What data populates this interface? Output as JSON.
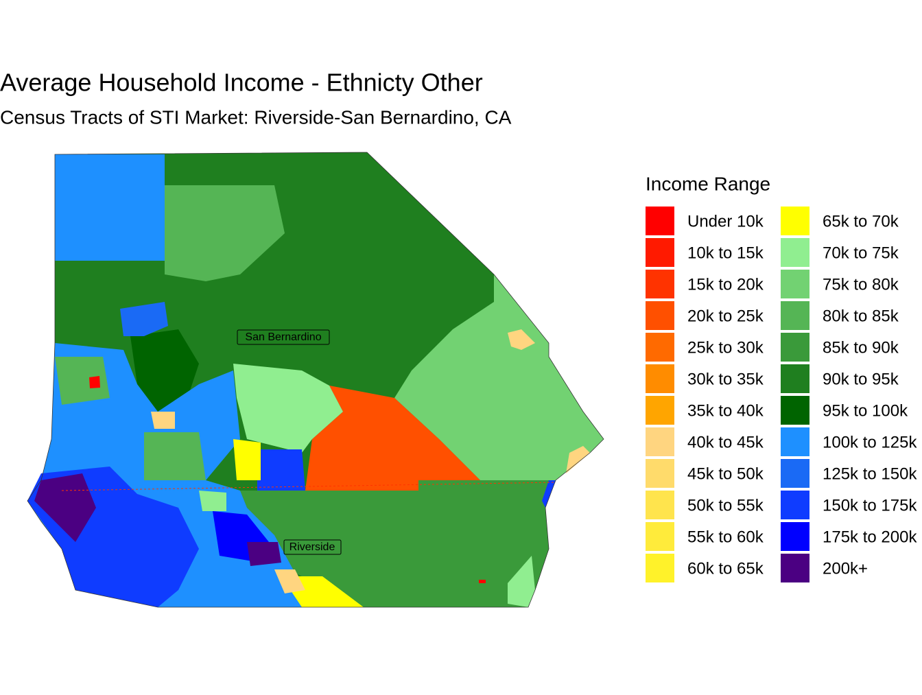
{
  "title": "Average Household Income - Ethnicty Other",
  "subtitle": "Census Tracts of STI Market: Riverside-San Bernardino, CA",
  "legend": {
    "title": "Income Range",
    "items": [
      {
        "label": "Under 10k",
        "color": "#FF0000"
      },
      {
        "label": "10k to 15k",
        "color": "#FF1A00"
      },
      {
        "label": "15k to 20k",
        "color": "#FF3300"
      },
      {
        "label": "20k to 25k",
        "color": "#FF5000"
      },
      {
        "label": "25k to 30k",
        "color": "#FF6A00"
      },
      {
        "label": "30k to 35k",
        "color": "#FF8C00"
      },
      {
        "label": "35k to 40k",
        "color": "#FFA500"
      },
      {
        "label": "40k to 45k",
        "color": "#FFD580"
      },
      {
        "label": "45k to 50k",
        "color": "#FFDB6B"
      },
      {
        "label": "50k to 55k",
        "color": "#FFE44D"
      },
      {
        "label": "55k to 60k",
        "color": "#FFEB3B"
      },
      {
        "label": "60k to 65k",
        "color": "#FFF22A"
      },
      {
        "label": "65k to 70k",
        "color": "#FFFF00"
      },
      {
        "label": "70k to 75k",
        "color": "#90EE90"
      },
      {
        "label": "75k to 80k",
        "color": "#72D272"
      },
      {
        "label": "80k to 85k",
        "color": "#55B555"
      },
      {
        "label": "85k to 90k",
        "color": "#3A9A3A"
      },
      {
        "label": "90k to 95k",
        "color": "#1F7F1F"
      },
      {
        "label": "95k to 100k",
        "color": "#006400"
      },
      {
        "label": "100k to 125k",
        "color": "#1E90FF"
      },
      {
        "label": "125k to 150k",
        "color": "#1A6AF5"
      },
      {
        "label": "150k to 175k",
        "color": "#0F3CFF"
      },
      {
        "label": "175k to 200k",
        "color": "#0000FF"
      },
      {
        "label": "200k+",
        "color": "#4B0082"
      }
    ]
  },
  "places": [
    {
      "label": "San Bernardino"
    },
    {
      "label": "Riverside"
    }
  ]
}
